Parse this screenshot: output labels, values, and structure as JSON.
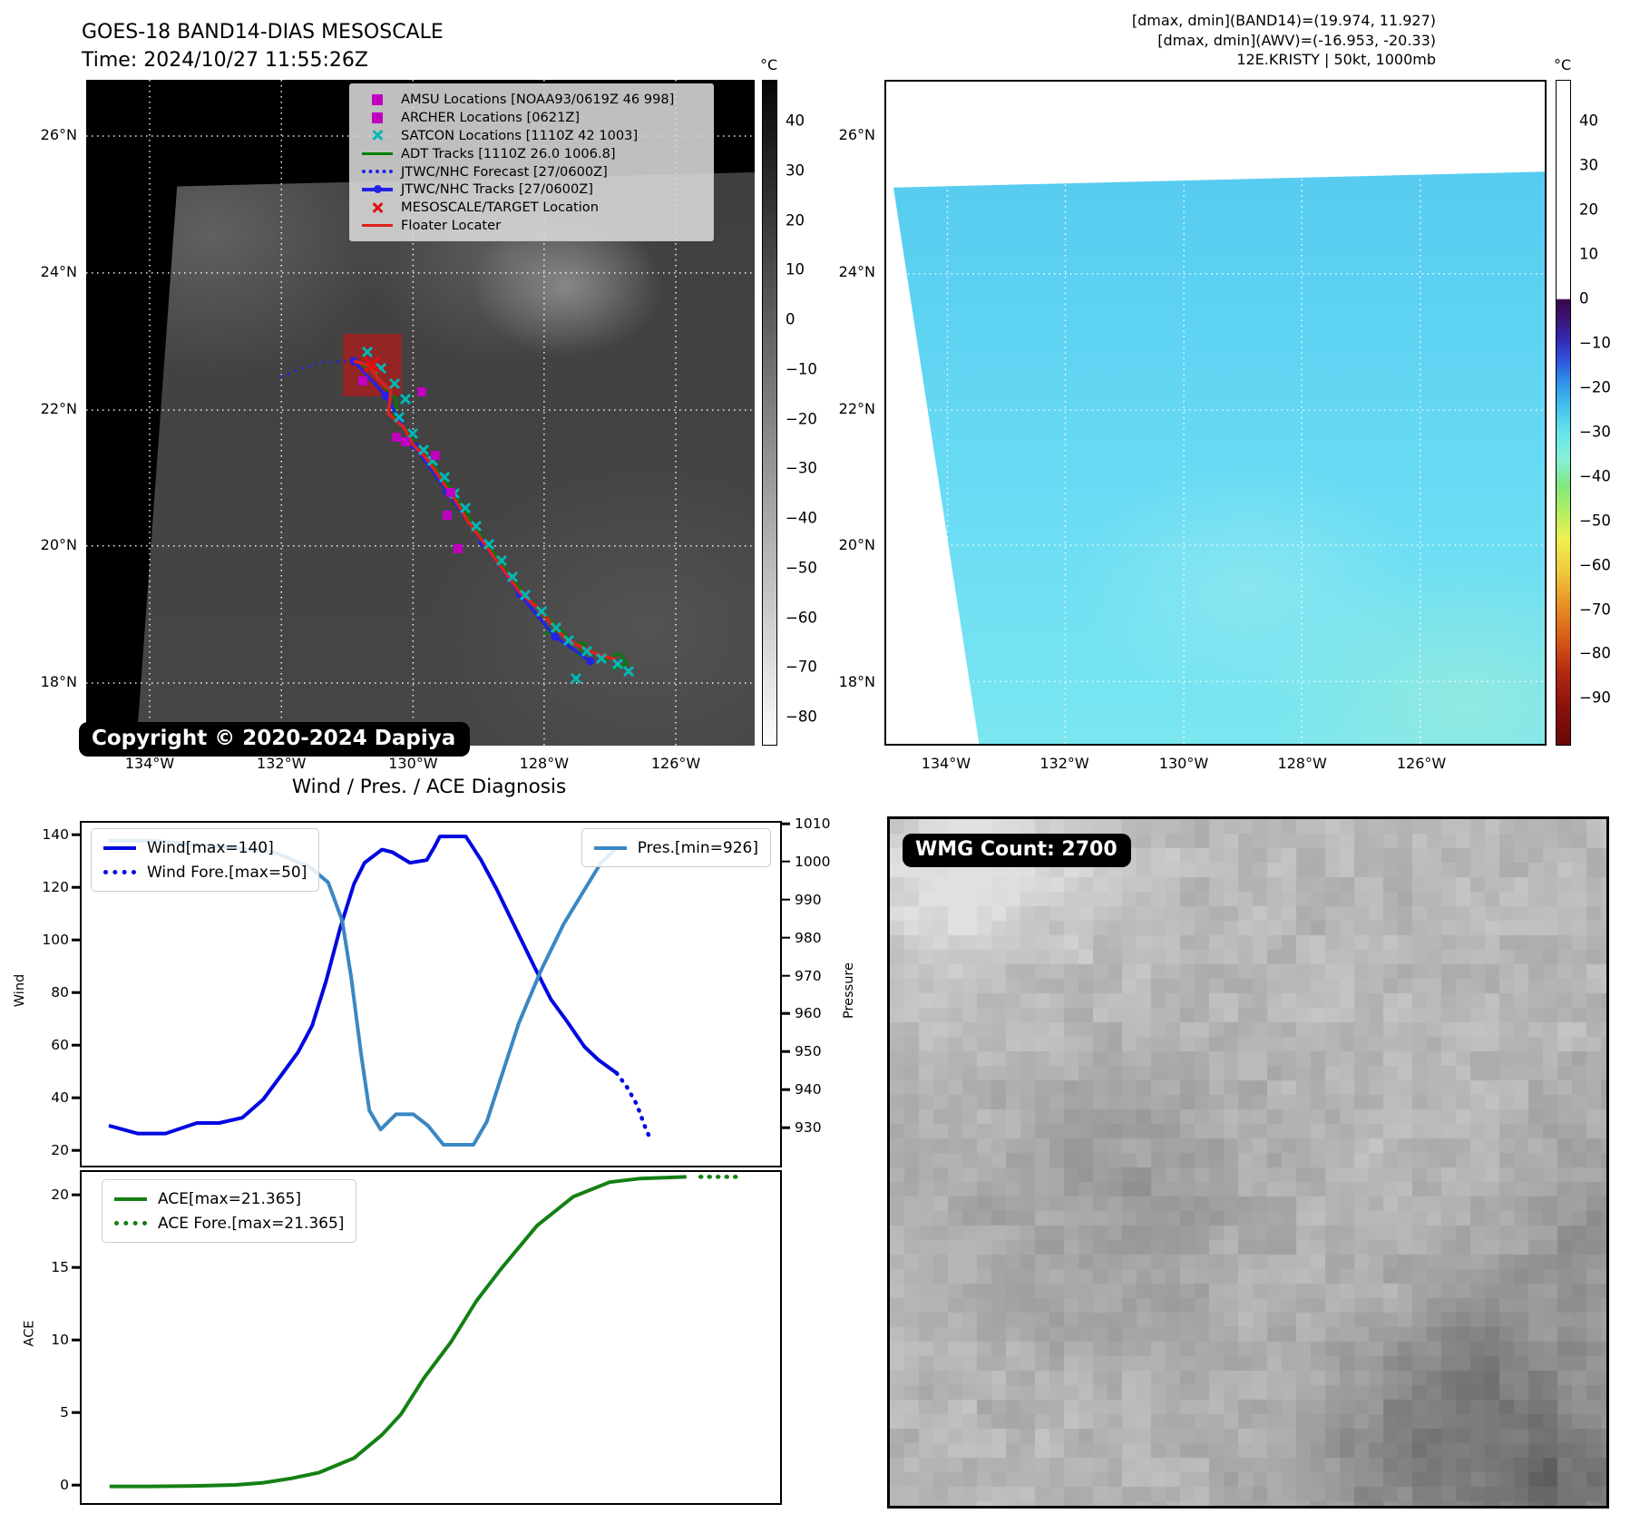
{
  "band14": {
    "title": "GOES-18 BAND14-DIAS MESOSCALE",
    "time_line": "Time: 2024/10/27 11:55:26Z",
    "copyright": "Copyright © 2020-2024 Dapiya",
    "lat_ticks": [
      "26°N",
      "24°N",
      "22°N",
      "20°N",
      "18°N"
    ],
    "lon_ticks": [
      "134°W",
      "132°W",
      "130°W",
      "128°W",
      "126°W"
    ],
    "colorbar": {
      "unit": "°C",
      "ticks": [
        "40",
        "30",
        "20",
        "10",
        "0",
        "−10",
        "−20",
        "−30",
        "−40",
        "−50",
        "−60",
        "−70",
        "−80"
      ]
    },
    "legend": [
      {
        "label": "AMSU Locations [NOAA93/0619Z 46 998]",
        "marker": "square-magenta"
      },
      {
        "label": "ARCHER Locations [0621Z]",
        "marker": "square-magenta"
      },
      {
        "label": "SATCON Locations [1110Z 42 1003]",
        "marker": "x-cyan"
      },
      {
        "label": "ADT Tracks [1110Z 26.0 1006.8]",
        "marker": "line-green"
      },
      {
        "label": "JTWC/NHC Forecast [27/0600Z]",
        "marker": "dotted-blue"
      },
      {
        "label": "JTWC/NHC Tracks [27/0600Z]",
        "marker": "line-dot-blue"
      },
      {
        "label": "MESOSCALE/TARGET Location",
        "marker": "x-red"
      },
      {
        "label": "Floater Locater",
        "marker": "line-red"
      }
    ],
    "accent_colors": {
      "magenta": "#bf00bf",
      "cyan": "#00b8b8",
      "green": "#008000",
      "blue": "#2222e8",
      "red": "#e01010",
      "floater_red": "#dc2020"
    }
  },
  "awv": {
    "header_lines": [
      "[dmax, dmin](BAND14)=(19.974, 11.927)",
      "[dmax, dmin](AWV)=(-16.953, -20.33)",
      "12E.KRISTY | 50kt, 1000mb"
    ],
    "lat_ticks": [
      "26°N",
      "24°N",
      "22°N",
      "20°N",
      "18°N"
    ],
    "lon_ticks": [
      "134°W",
      "132°W",
      "130°W",
      "128°W",
      "126°W"
    ],
    "colorbar": {
      "unit": "°C",
      "ticks": [
        "40",
        "30",
        "20",
        "10",
        "0",
        "−10",
        "−20",
        "−30",
        "−40",
        "−50",
        "−60",
        "−70",
        "−80",
        "−90"
      ]
    }
  },
  "wmg": {
    "count_label": "WMG Count: 2700"
  },
  "chart_data": [
    {
      "type": "line",
      "title": "Wind / Pres. / ACE Diagnosis",
      "xlabel": "",
      "ylabel_left": "Wind",
      "ylabel_right": "Pressure",
      "x_range": [
        0,
        1
      ],
      "grid": false,
      "y_left": {
        "min": 14.8,
        "max": 145.2,
        "ticks": [
          20,
          40,
          60,
          80,
          100,
          120,
          140
        ]
      },
      "y_right": {
        "min": 920.5,
        "max": 1010.7,
        "ticks": [
          930,
          940,
          950,
          960,
          970,
          980,
          990,
          1000,
          1010
        ]
      },
      "series": [
        {
          "name": "Wind[max=140]",
          "axis": "left",
          "style": "solid",
          "color": "#0008e0",
          "x": [
            0.039,
            0.08,
            0.12,
            0.165,
            0.197,
            0.23,
            0.26,
            0.288,
            0.31,
            0.33,
            0.35,
            0.37,
            0.39,
            0.405,
            0.43,
            0.445,
            0.47,
            0.494,
            0.505,
            0.513,
            0.55,
            0.572,
            0.594,
            0.625,
            0.649,
            0.672,
            0.694,
            0.72,
            0.74,
            0.766
          ],
          "y": [
            30,
            27,
            27,
            31,
            31,
            33,
            40,
            50,
            58,
            68,
            85,
            105,
            122,
            130,
            135,
            134,
            130,
            131,
            136,
            140,
            140,
            131,
            120,
            103,
            90,
            78,
            70,
            60,
            55,
            50
          ]
        },
        {
          "name": "Wind Fore.[max=50]",
          "axis": "left",
          "style": "dotted",
          "color": "#0008e0",
          "x": [
            0.766,
            0.78,
            0.795,
            0.806,
            0.814
          ],
          "y": [
            50,
            45,
            38,
            30,
            25
          ]
        },
        {
          "name": "Pres.[min=926]",
          "axis": "right",
          "style": "solid",
          "color": "#3a87c2",
          "x": [
            0.039,
            0.1,
            0.16,
            0.22,
            0.275,
            0.327,
            0.353,
            0.373,
            0.386,
            0.4,
            0.412,
            0.428,
            0.45,
            0.475,
            0.496,
            0.518,
            0.54,
            0.561,
            0.58,
            0.594,
            0.626,
            0.658,
            0.69,
            0.723,
            0.743,
            0.766
          ],
          "y": [
            1006,
            1006,
            1005,
            1004,
            1003,
            999,
            995,
            985,
            970,
            950,
            935,
            930,
            934,
            934,
            931,
            926,
            926,
            926,
            932,
            940,
            958,
            972,
            984,
            994,
            1000,
            1004
          ]
        }
      ],
      "legend_positions": [
        "upper left",
        "upper right"
      ]
    },
    {
      "type": "line",
      "ylabel_left": "ACE",
      "x_range": [
        0,
        1
      ],
      "grid": false,
      "y_left": {
        "min": -1.1,
        "max": 21.7,
        "ticks": [
          0,
          5,
          10,
          15,
          20
        ]
      },
      "series": [
        {
          "name": "ACE[max=21.365]",
          "axis": "left",
          "style": "solid",
          "color": "#148014",
          "x": [
            0.04,
            0.1,
            0.16,
            0.22,
            0.26,
            0.3,
            0.34,
            0.39,
            0.43,
            0.457,
            0.49,
            0.529,
            0.565,
            0.6,
            0.652,
            0.704,
            0.756,
            0.8,
            0.866
          ],
          "y": [
            0.05,
            0.05,
            0.08,
            0.15,
            0.3,
            0.6,
            1.0,
            2.0,
            3.6,
            5.0,
            7.5,
            10.0,
            12.8,
            15.0,
            18.0,
            20.0,
            21.0,
            21.25,
            21.36
          ]
        },
        {
          "name": "ACE Fore.[max=21.365]",
          "axis": "left",
          "style": "dotted",
          "color": "#148014",
          "x": [
            0.886,
            0.915,
            0.945
          ],
          "y": [
            21.365,
            21.365,
            21.365
          ]
        }
      ],
      "legend_positions": [
        "upper left"
      ]
    }
  ]
}
